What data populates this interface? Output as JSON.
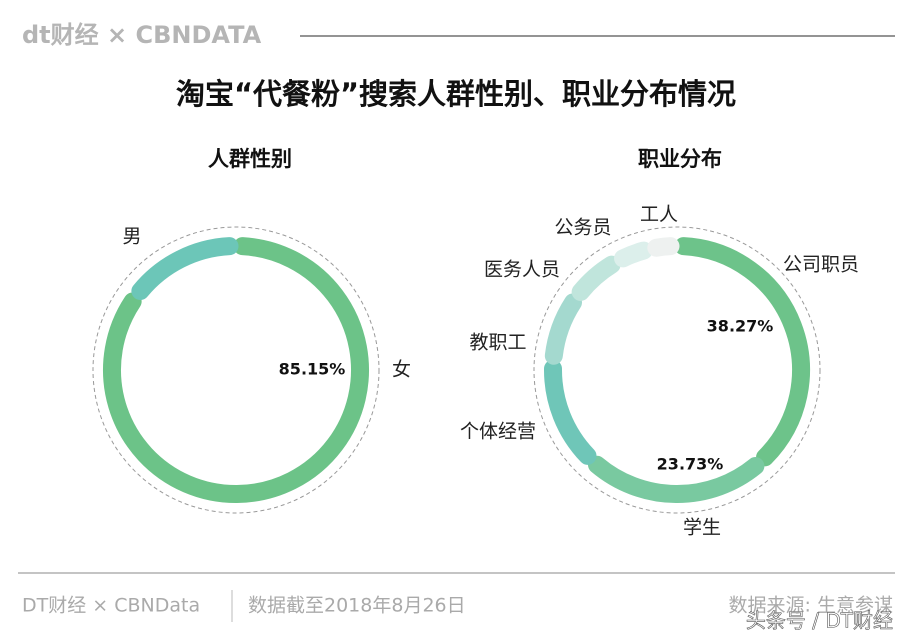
{
  "header": {
    "brand": "dt财经 × CBNDATA"
  },
  "title": "淘宝“代餐粉”搜索人群性别、职业分布情况",
  "chart_data": [
    {
      "type": "donut",
      "title": "人群性别",
      "categories": [
        "女",
        "男"
      ],
      "values": [
        85.15,
        14.85
      ],
      "value_labels": [
        "85.15%",
        null
      ],
      "colors": [
        "#6cc388",
        "#6cc6b8"
      ]
    },
    {
      "type": "donut",
      "title": "职业分布",
      "categories": [
        "公司职员",
        "学生",
        "个体经营",
        "教职工",
        "医务人员",
        "公务员",
        "工人"
      ],
      "values": [
        38.27,
        23.73,
        14,
        9,
        7,
        4.5,
        3.5
      ],
      "value_labels": [
        "38.27%",
        "23.73%",
        null,
        null,
        null,
        null,
        null
      ],
      "colors": [
        "#6dc38a",
        "#79c9a0",
        "#6fc6b8",
        "#a4d9cf",
        "#c0e5dc",
        "#dcefeb",
        "#eef1f0"
      ]
    }
  ],
  "footer": {
    "left": "DT财经 × CBNData",
    "date": "数据截至2018年8月26日",
    "source": "数据来源: 生意参谋",
    "watermark": "头条号 / DT财经"
  }
}
